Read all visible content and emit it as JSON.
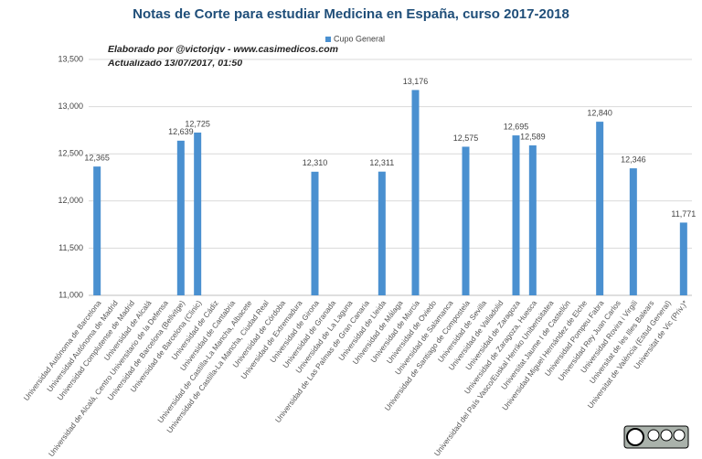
{
  "chart_data": {
    "type": "bar",
    "title": "Notas de Corte para estudiar Medicina en España, curso 2017-2018",
    "annotations": [
      "Elaborado por @victorjqv - www.casimedicos.com",
      "Actualizado 13/07/2017, 01:50"
    ],
    "categories": [
      "Universidad Autónoma de Barcelona",
      "Universidad Autónoma de Madrid",
      "Universidad Complutense de Madrid",
      "Universidad de Alcalá",
      "Universidad de Alcalá, Centro Universitario de la Defensa",
      "Universidad de Barcelona (Bellvitge)",
      "Universidad de Barcelona (Clinic)",
      "Universidad de Cádiz",
      "Universidad de Cantabria",
      "Universidad de Castilla-La Mancha, Albacete",
      "Universidad de Castilla-La Mancha, Ciudad Real",
      "Universidad de Córdoba",
      "Universidad de Extremadura",
      "Universidad de Girona",
      "Universidad de Granada",
      "Universidad de La Laguna",
      "Universidad de Las Palmas de Gran Canaria",
      "Universidad de Lleida",
      "Universidad de Málaga",
      "Universidad de Murcia",
      "Universidad de Oviedo",
      "Universidad de Salamanca",
      "Universidad de Santiago de Compostela",
      "Universidad de Sevilla",
      "Universidad de Valladolid",
      "Universidad de Zaragoza",
      "Universidad de Zaragoza, Huesca",
      "Universidad del País Vasco/Euskal Herriko Unibertsitatea",
      "Universitat Jaume I de Castellón",
      "Universidad Miguel Hernández de Elche",
      "Universidad Pompeu Fabra",
      "Universidad Rey Juan Carlos",
      "Universidad Rovira i Virgili",
      "Universitat de les Illes Balears",
      "Universitat de València (Estud General)",
      "Universitat de Vic (Priv.)*"
    ],
    "series": [
      {
        "name": "Cupo General",
        "color": "#4a90d0",
        "values": [
          12365,
          null,
          null,
          null,
          null,
          12639,
          12725,
          null,
          null,
          null,
          null,
          null,
          null,
          12310,
          null,
          null,
          null,
          12311,
          null,
          13176,
          null,
          null,
          12575,
          null,
          null,
          12695,
          12589,
          null,
          null,
          null,
          12840,
          null,
          12346,
          null,
          null,
          11771
        ],
        "value_labels": [
          "12,365",
          null,
          null,
          null,
          null,
          "12,639",
          "12,725",
          null,
          null,
          null,
          null,
          null,
          null,
          "12,310",
          null,
          null,
          null,
          "12,311",
          null,
          "13,176",
          null,
          null,
          "12,575",
          null,
          null,
          "12,695",
          "12,589",
          null,
          null,
          null,
          "12,840",
          null,
          "12,346",
          null,
          null,
          "11,771"
        ]
      }
    ],
    "ylim": [
      11000,
      13500
    ],
    "yticks": [
      {
        "value": 11000,
        "label": "11,000"
      },
      {
        "value": 11500,
        "label": "11,500"
      },
      {
        "value": 12000,
        "label": "12,000"
      },
      {
        "value": 12500,
        "label": "12,500"
      },
      {
        "value": 13000,
        "label": "13,000"
      },
      {
        "value": 13500,
        "label": "13,500"
      }
    ],
    "grid": true,
    "legend": "top"
  }
}
